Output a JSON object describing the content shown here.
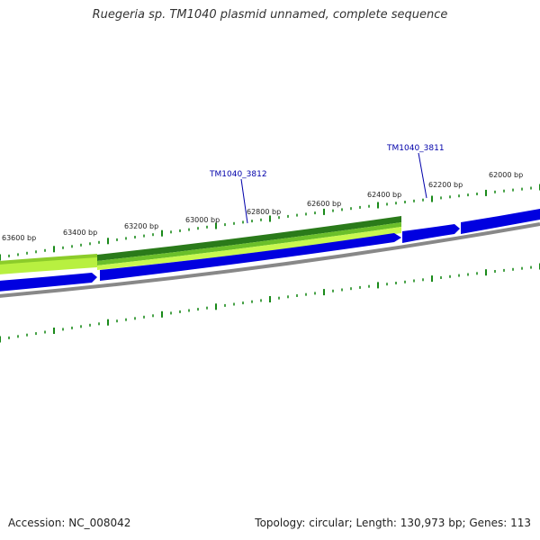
{
  "title": "Ruegeria sp. TM1040 plasmid unnamed, complete sequence",
  "footer": {
    "accession_label": "Accession:",
    "accession": "NC_008042",
    "topology": "Topology: circular; Length: 130,973 bp; Genes: 113"
  },
  "colors": {
    "background": "#ffffff",
    "tick": "#1a8a1a",
    "backbone": "#888888",
    "cds_forward": "#0000e0",
    "gc_dark": "#2a7a1a",
    "gc_light": "#b8f040",
    "gene_label": "#0000aa"
  },
  "scale": {
    "unit": "bp",
    "tick_labels": [
      "63600 bp",
      "63400 bp",
      "63200 bp",
      "63000 bp",
      "62800 bp",
      "62600 bp",
      "62400 bp",
      "62200 bp",
      "62000 bp"
    ]
  },
  "gene_labels": [
    "TM1040_3812",
    "TM1040_3811"
  ]
}
